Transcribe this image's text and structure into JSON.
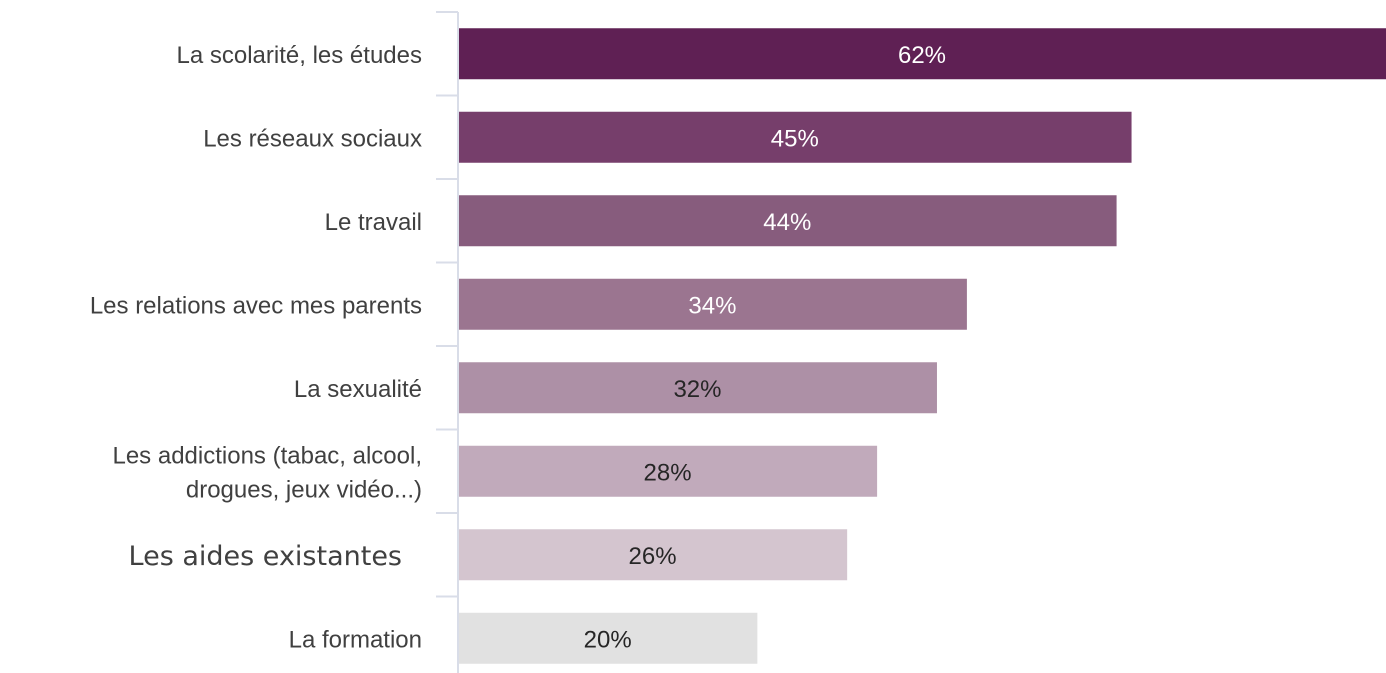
{
  "chart_data": {
    "type": "bar",
    "orientation": "horizontal",
    "categories": [
      [
        "La scolarité, les études"
      ],
      [
        "Les réseaux sociaux"
      ],
      [
        "Le travail"
      ],
      [
        "Les relations avec mes parents"
      ],
      [
        "La sexualité"
      ],
      [
        "Les addictions (tabac, alcool,",
        "drogues, jeux vidéo...)"
      ],
      [
        "Les aides existantes"
      ],
      [
        "La formation"
      ]
    ],
    "values": [
      62,
      45,
      44,
      34,
      32,
      28,
      26,
      20
    ],
    "value_labels": [
      "62%",
      "45%",
      "44%",
      "34%",
      "32%",
      "28%",
      "26%",
      "20%"
    ],
    "bar_colors": [
      "#5f2054",
      "#763e6b",
      "#875c7d",
      "#9b7590",
      "#ad90a6",
      "#c1aabb",
      "#d4c5cf",
      "#e1e1e1"
    ],
    "value_label_colors": [
      "#ffffff",
      "#ffffff",
      "#ffffff",
      "#ffffff",
      "#262626",
      "#262626",
      "#262626",
      "#262626"
    ],
    "axis_color": "#d9dde8",
    "label_color": "#404040",
    "xlim": [
      0,
      62
    ],
    "grid": false,
    "legend": "none",
    "title": "",
    "xlabel": "",
    "ylabel": ""
  }
}
